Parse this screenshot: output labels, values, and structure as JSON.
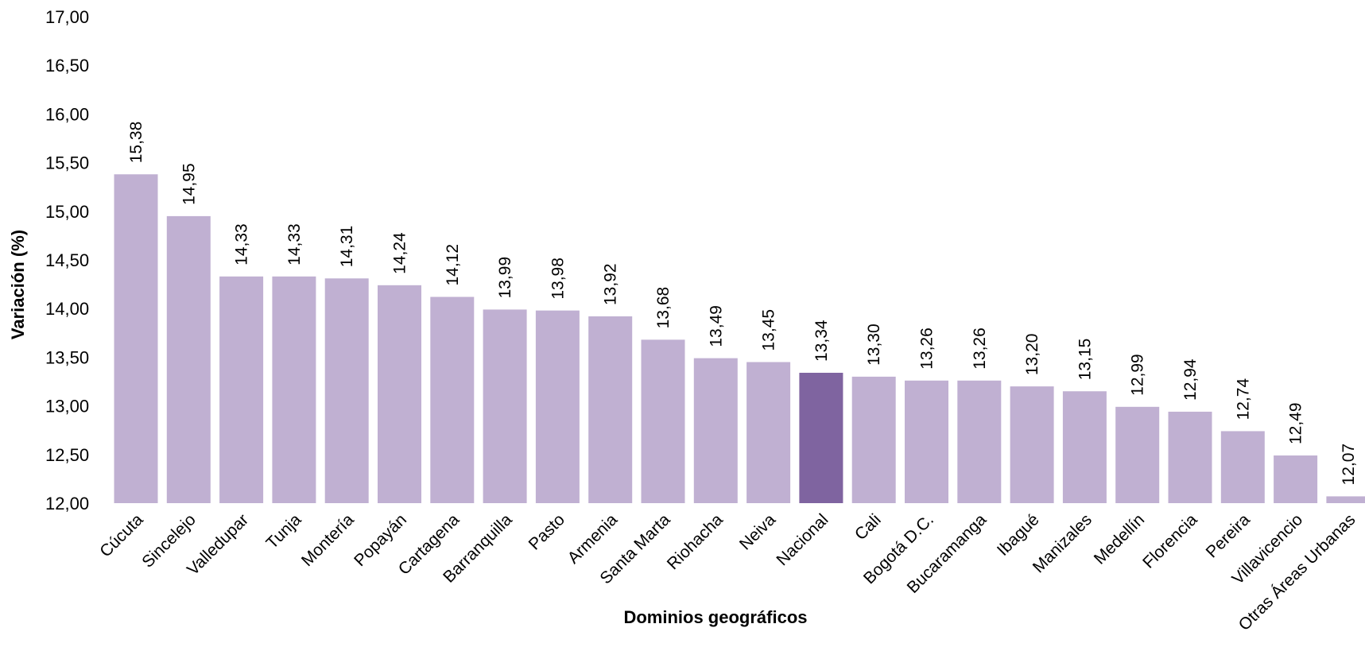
{
  "chart_data": {
    "type": "bar",
    "title": "",
    "xlabel": "Dominios geográficos",
    "ylabel": "Variación (%)",
    "ylim": [
      12.0,
      17.0
    ],
    "yticks": [
      "12,00",
      "12,50",
      "13,00",
      "13,50",
      "14,00",
      "14,50",
      "15,00",
      "15,50",
      "16,00",
      "16,50",
      "17,00"
    ],
    "ytick_values": [
      12.0,
      12.5,
      13.0,
      13.5,
      14.0,
      14.5,
      15.0,
      15.5,
      16.0,
      16.5,
      17.0
    ],
    "grid": false,
    "legend": "none",
    "colors": {
      "default": "#c0b0d2",
      "highlight": "#7f64a0"
    },
    "highlight_category": "Nacional",
    "categories": [
      "Cúcuta",
      "Sincelejo",
      "Valledupar",
      "Tunja",
      "Montería",
      "Popayán",
      "Cartagena",
      "Barranquilla",
      "Pasto",
      "Armenia",
      "Santa Marta",
      "Riohacha",
      "Neiva",
      "Nacional",
      "Cali",
      "Bogotá D.C.",
      "Bucaramanga",
      "Ibagué",
      "Manizales",
      "Medellín",
      "Florencia",
      "Pereira",
      "Villavicencio",
      "Otras Áreas Urbanas"
    ],
    "values": [
      15.38,
      14.95,
      14.33,
      14.33,
      14.31,
      14.24,
      14.12,
      13.99,
      13.98,
      13.92,
      13.68,
      13.49,
      13.45,
      13.34,
      13.3,
      13.26,
      13.26,
      13.2,
      13.15,
      12.99,
      12.94,
      12.74,
      12.49,
      12.07
    ],
    "value_labels": [
      "15,38",
      "14,95",
      "14,33",
      "14,33",
      "14,31",
      "14,24",
      "14,12",
      "13,99",
      "13,98",
      "13,92",
      "13,68",
      "13,49",
      "13,45",
      "13,34",
      "13,30",
      "13,26",
      "13,26",
      "13,20",
      "13,15",
      "12,99",
      "12,94",
      "12,74",
      "12,49",
      "12,07"
    ]
  }
}
